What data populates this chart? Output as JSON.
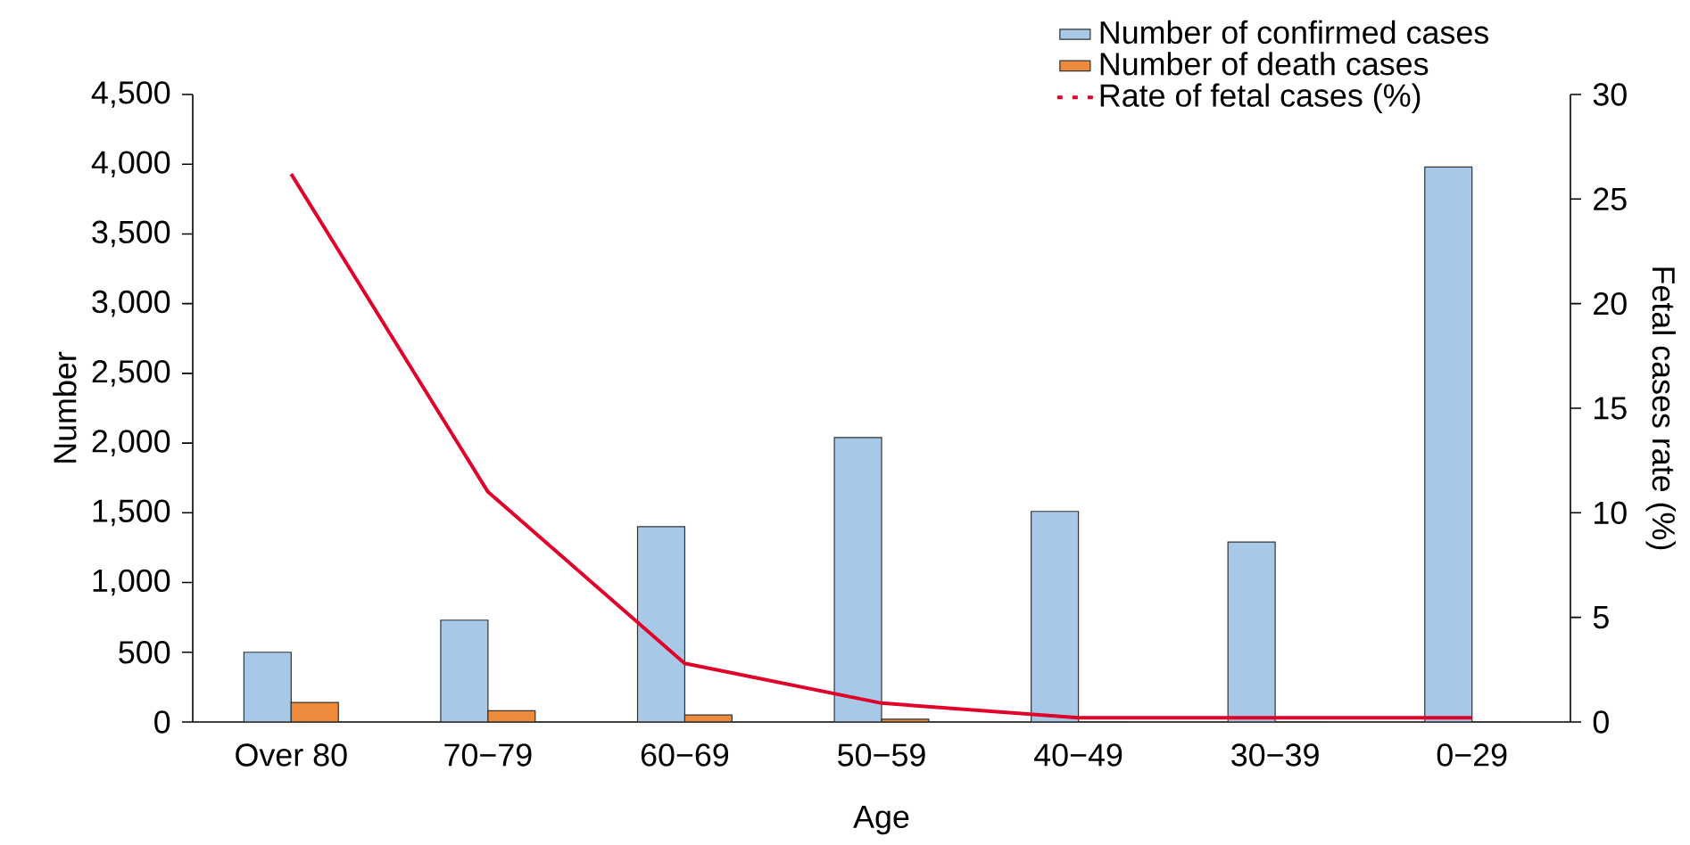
{
  "chart_data": {
    "type": "bar",
    "xlabel": "Age",
    "ylabel": "Number",
    "y2label": "Fetal cases rate (%)",
    "categories": [
      "Over 80",
      "70−79",
      "60−69",
      "50−59",
      "40−49",
      "30−39",
      "0−29"
    ],
    "series": [
      {
        "name": "Number of confirmed cases",
        "color": "#a8c8e8",
        "values": [
          500,
          730,
          1400,
          2040,
          1510,
          1290,
          3980
        ]
      },
      {
        "name": "Number of death cases",
        "color": "#ee8a3c",
        "values": [
          140,
          80,
          50,
          20,
          0,
          0,
          0
        ]
      },
      {
        "name": "Rate of fetal cases (%)",
        "type": "line",
        "axis": "y2",
        "color": "#e0002a",
        "values": [
          26.2,
          11.0,
          2.8,
          0.9,
          0.2,
          0.2,
          0.2
        ]
      }
    ],
    "ylim": [
      0,
      4500
    ],
    "yticks": [
      0,
      {
        "value": 500,
        "label": "500"
      },
      {
        "value": 1000,
        "label": "1,000"
      },
      {
        "value": 1500,
        "label": "1,500"
      },
      {
        "value": 2000,
        "label": "2,000"
      },
      {
        "value": 2500,
        "label": "2,500"
      },
      {
        "value": 3000,
        "label": "3,000"
      },
      {
        "value": 3500,
        "label": "3,500"
      },
      {
        "value": 4000,
        "label": "4,000"
      },
      {
        "value": 4500,
        "label": "4,500"
      }
    ],
    "y2lim": [
      0,
      30
    ],
    "y2ticks": [
      0,
      5,
      10,
      15,
      20,
      25,
      30
    ],
    "grid": false,
    "legend": "top right"
  }
}
